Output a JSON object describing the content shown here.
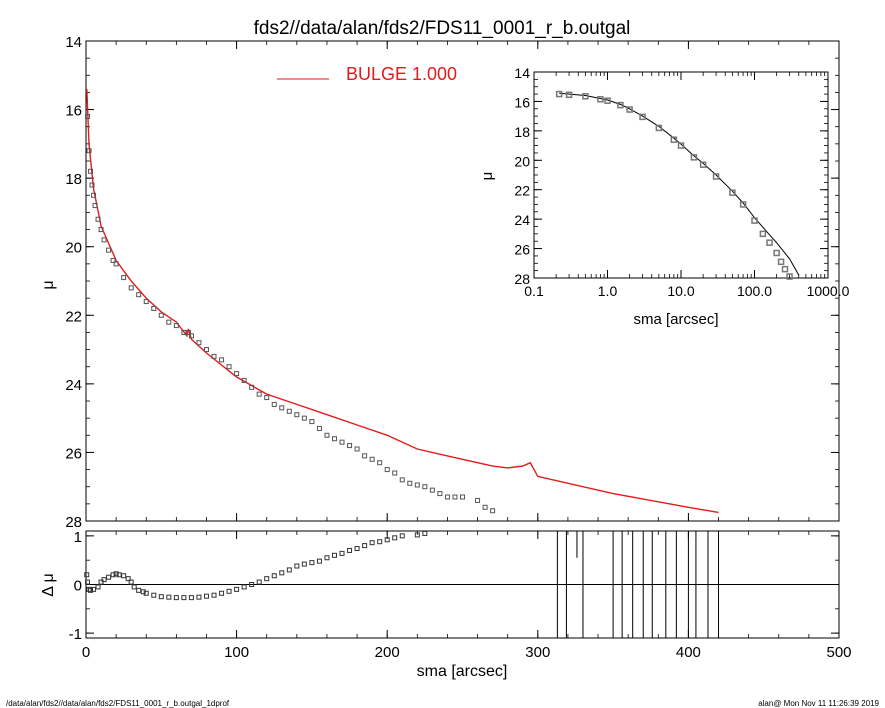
{
  "page": {
    "footer_left": "/data/alan/fds2//data/alan/fds2/FDS11_0001_r_b.outgal_1dprof",
    "footer_right": "alan@  Mon Nov 11 11:26:39 2019"
  },
  "colors": {
    "model": "#e41a1c",
    "axes": "#000000",
    "points": "#555555"
  },
  "chart_data": [
    {
      "id": "main_profile",
      "type": "scatter",
      "title": "fds2//data/alan/fds2/FDS11_0001_r_b.outgal",
      "xlabel": "",
      "ylabel": "μ",
      "xlim": [
        0,
        500
      ],
      "ylim": [
        28,
        14
      ],
      "y_inverted": true,
      "y_ticks": [
        14,
        16,
        18,
        20,
        22,
        24,
        26,
        28
      ],
      "legend": {
        "label": "BULGE  1.000",
        "placement": "top-center"
      },
      "series": [
        {
          "name": "BULGE  1.000",
          "kind": "line",
          "x": [
            0.5,
            2,
            5,
            10,
            20,
            30,
            40,
            50,
            60,
            67,
            68,
            70,
            80,
            100,
            120,
            140,
            160,
            180,
            200,
            220,
            240,
            260,
            270,
            280,
            290,
            295,
            300,
            350,
            400,
            420
          ],
          "y": [
            15.4,
            17.0,
            18.3,
            19.4,
            20.4,
            21.0,
            21.5,
            21.9,
            22.2,
            22.6,
            22.4,
            22.7,
            23.1,
            23.8,
            24.3,
            24.6,
            24.9,
            25.2,
            25.5,
            25.9,
            26.1,
            26.3,
            26.4,
            26.45,
            26.4,
            26.3,
            26.7,
            27.2,
            27.6,
            27.75
          ]
        },
        {
          "name": "",
          "kind": "points",
          "x": [
            1,
            2,
            3,
            4,
            5,
            6,
            8,
            10,
            12,
            15,
            18,
            20,
            25,
            30,
            35,
            40,
            45,
            50,
            55,
            60,
            65,
            68,
            70,
            75,
            80,
            85,
            90,
            95,
            100,
            105,
            110,
            115,
            120,
            125,
            130,
            135,
            140,
            145,
            150,
            155,
            160,
            165,
            170,
            175,
            180,
            185,
            190,
            195,
            200,
            205,
            210,
            215,
            220,
            225,
            230,
            235,
            240,
            245,
            250,
            260,
            265,
            270
          ],
          "y": [
            16.2,
            17.2,
            17.8,
            18.2,
            18.5,
            18.8,
            19.2,
            19.5,
            19.8,
            20.1,
            20.4,
            20.5,
            20.9,
            21.2,
            21.4,
            21.6,
            21.8,
            22.0,
            22.2,
            22.3,
            22.5,
            22.5,
            22.6,
            22.8,
            23.0,
            23.2,
            23.3,
            23.5,
            23.7,
            23.9,
            24.1,
            24.3,
            24.4,
            24.6,
            24.7,
            24.8,
            24.9,
            25.0,
            25.1,
            25.3,
            25.5,
            25.6,
            25.7,
            25.8,
            25.9,
            26.1,
            26.2,
            26.3,
            26.5,
            26.6,
            26.8,
            26.9,
            26.95,
            27.0,
            27.1,
            27.2,
            27.3,
            27.3,
            27.3,
            27.4,
            27.6,
            27.7
          ]
        }
      ]
    },
    {
      "id": "residuals",
      "type": "scatter",
      "xlabel": "sma [arcsec]",
      "ylabel": "Δ μ",
      "xlim": [
        0,
        500
      ],
      "ylim": [
        -1.1,
        1.1
      ],
      "x_ticks": [
        0,
        100,
        200,
        300,
        400,
        500
      ],
      "y_ticks": [
        -1,
        0,
        1
      ],
      "zero_line": true,
      "series": [
        {
          "name": "",
          "kind": "points",
          "x": [
            0.5,
            1,
            2,
            3,
            5,
            8,
            10,
            12,
            15,
            18,
            20,
            22,
            25,
            28,
            30,
            32,
            35,
            38,
            40,
            45,
            50,
            55,
            60,
            65,
            70,
            75,
            80,
            85,
            90,
            95,
            100,
            105,
            110,
            115,
            120,
            125,
            130,
            135,
            140,
            145,
            150,
            155,
            160,
            165,
            170,
            175,
            180,
            185,
            190,
            195,
            200,
            205,
            210,
            220,
            225
          ],
          "y": [
            0.2,
            0.05,
            -0.1,
            -0.12,
            -0.1,
            -0.05,
            0.05,
            0.1,
            0.15,
            0.2,
            0.22,
            0.2,
            0.18,
            0.12,
            0.05,
            -0.05,
            -0.12,
            -0.15,
            -0.18,
            -0.22,
            -0.25,
            -0.26,
            -0.27,
            -0.27,
            -0.27,
            -0.26,
            -0.24,
            -0.22,
            -0.18,
            -0.14,
            -0.1,
            -0.05,
            0.0,
            0.05,
            0.12,
            0.18,
            0.24,
            0.3,
            0.38,
            0.42,
            0.45,
            0.48,
            0.55,
            0.6,
            0.64,
            0.7,
            0.74,
            0.8,
            0.86,
            0.88,
            0.92,
            0.96,
            1.0,
            1.02,
            1.05
          ]
        },
        {
          "name": "",
          "kind": "spikes",
          "x": [
            313,
            319,
            326,
            330,
            350,
            356,
            363,
            370,
            376,
            385,
            392,
            400,
            405,
            413,
            420
          ],
          "y": [
            -1.1,
            -1.1,
            0.55,
            -1.1,
            -1.1,
            -1.1,
            -1.1,
            -1.1,
            -1.1,
            -1.1,
            -1.1,
            -1.1,
            -1.1,
            -1.1,
            -1.1
          ]
        }
      ]
    },
    {
      "id": "inset_log",
      "type": "line",
      "xlabel": "sma [arcsec]",
      "ylabel": "μ",
      "x_scale": "log",
      "xlim": [
        0.1,
        1000.0
      ],
      "ylim": [
        28,
        14
      ],
      "y_inverted": true,
      "x_ticks": [
        0.1,
        1.0,
        10.0,
        100.0,
        1000.0
      ],
      "x_tick_labels": [
        "0.1",
        "1.0",
        "10.0",
        "100.0",
        "1000.0"
      ],
      "y_ticks": [
        14,
        16,
        18,
        20,
        22,
        24,
        26,
        28
      ],
      "series": [
        {
          "name": "",
          "kind": "line",
          "x": [
            0.22,
            0.3,
            0.5,
            0.8,
            1.0,
            1.5,
            2.0,
            3.0,
            5.0,
            8.0,
            10.0,
            15.0,
            20.0,
            30.0,
            50.0,
            70.0,
            100.0,
            150.0,
            200.0,
            300.0,
            400.0
          ],
          "y": [
            15.45,
            15.5,
            15.6,
            15.8,
            15.9,
            16.2,
            16.5,
            17.0,
            17.7,
            18.5,
            18.9,
            19.7,
            20.2,
            21.0,
            22.1,
            22.9,
            23.9,
            24.9,
            25.6,
            26.7,
            27.8
          ]
        },
        {
          "name": "",
          "kind": "points",
          "x": [
            0.22,
            0.3,
            0.5,
            0.8,
            1.0,
            1.5,
            2.0,
            3.0,
            5.0,
            8.0,
            10.0,
            15.0,
            20.0,
            30.0,
            50.0,
            70.0,
            100.0,
            130.0,
            160.0,
            200.0,
            230.0,
            260.0,
            300.0
          ],
          "y": [
            15.5,
            15.55,
            15.65,
            15.85,
            15.95,
            16.25,
            16.55,
            17.05,
            17.8,
            18.6,
            19.0,
            19.8,
            20.3,
            21.1,
            22.2,
            23.0,
            24.1,
            25.0,
            25.6,
            26.3,
            26.9,
            27.4,
            27.9
          ]
        }
      ]
    }
  ]
}
